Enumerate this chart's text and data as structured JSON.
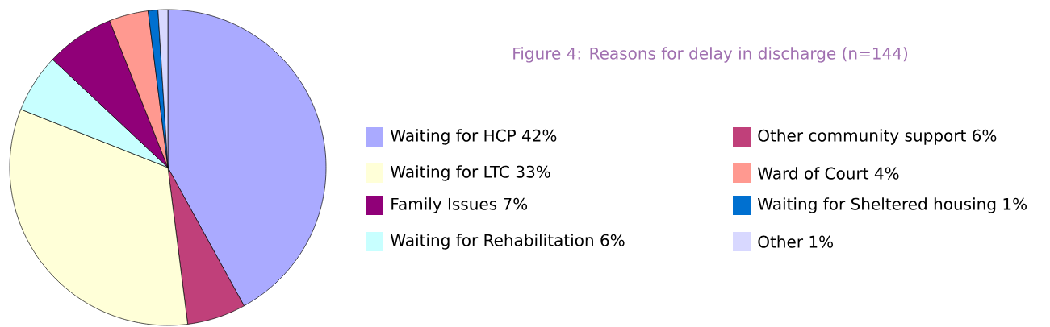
{
  "chart_data": {
    "type": "pie",
    "title": "Figure 4: Reasons for delay in discharge (n=144)",
    "categories": [
      "Waiting for HCP 42%",
      "Other community support 6%",
      "Waiting for LTC 33%",
      "Waiting for Rehabilitation 6%",
      "Family Issues 7%",
      "Ward of Court 4%",
      "Waiting for Sheltered housing 1%",
      "Other 1%"
    ],
    "values": [
      42,
      6,
      33,
      6,
      7,
      4,
      1,
      1
    ],
    "colors": [
      "#aaaaff",
      "#c0407a",
      "#ffffd8",
      "#c8ffff",
      "#900078",
      "#ff9990",
      "#0070d0",
      "#d8d8ff"
    ],
    "legend": "right"
  }
}
